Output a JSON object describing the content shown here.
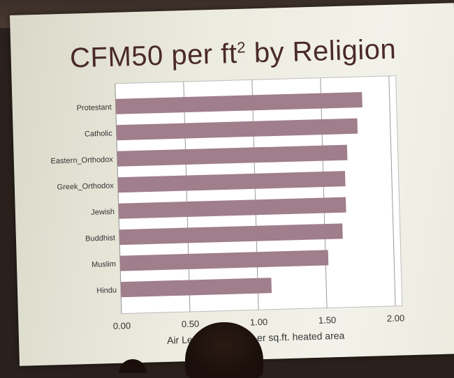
{
  "title_main": "CFM50 per ft",
  "title_sup": "2",
  "title_end": " by Religion",
  "chart_data": {
    "type": "bar",
    "orientation": "horizontal",
    "title": "CFM50 per ft² by Religion",
    "xlabel_left": "Air Leaka",
    "xlabel_right": "er sq.ft. heated area",
    "categories": [
      "Protestant",
      "Catholic",
      "Eastern_Orthodox",
      "Greek_Orthodox",
      "Jewish",
      "Buddhist",
      "Muslim",
      "Hindu"
    ],
    "values": [
      1.8,
      1.76,
      1.68,
      1.66,
      1.66,
      1.63,
      1.52,
      1.1
    ],
    "xlim": [
      0,
      2.05
    ],
    "xticks": [
      0.0,
      0.5,
      1.0,
      1.5,
      2.0
    ],
    "xtick_labels": [
      "0.00",
      "0.50",
      "1.00",
      "1.50",
      "2.00"
    ],
    "bar_color": "#a07e8b",
    "grid": true
  }
}
